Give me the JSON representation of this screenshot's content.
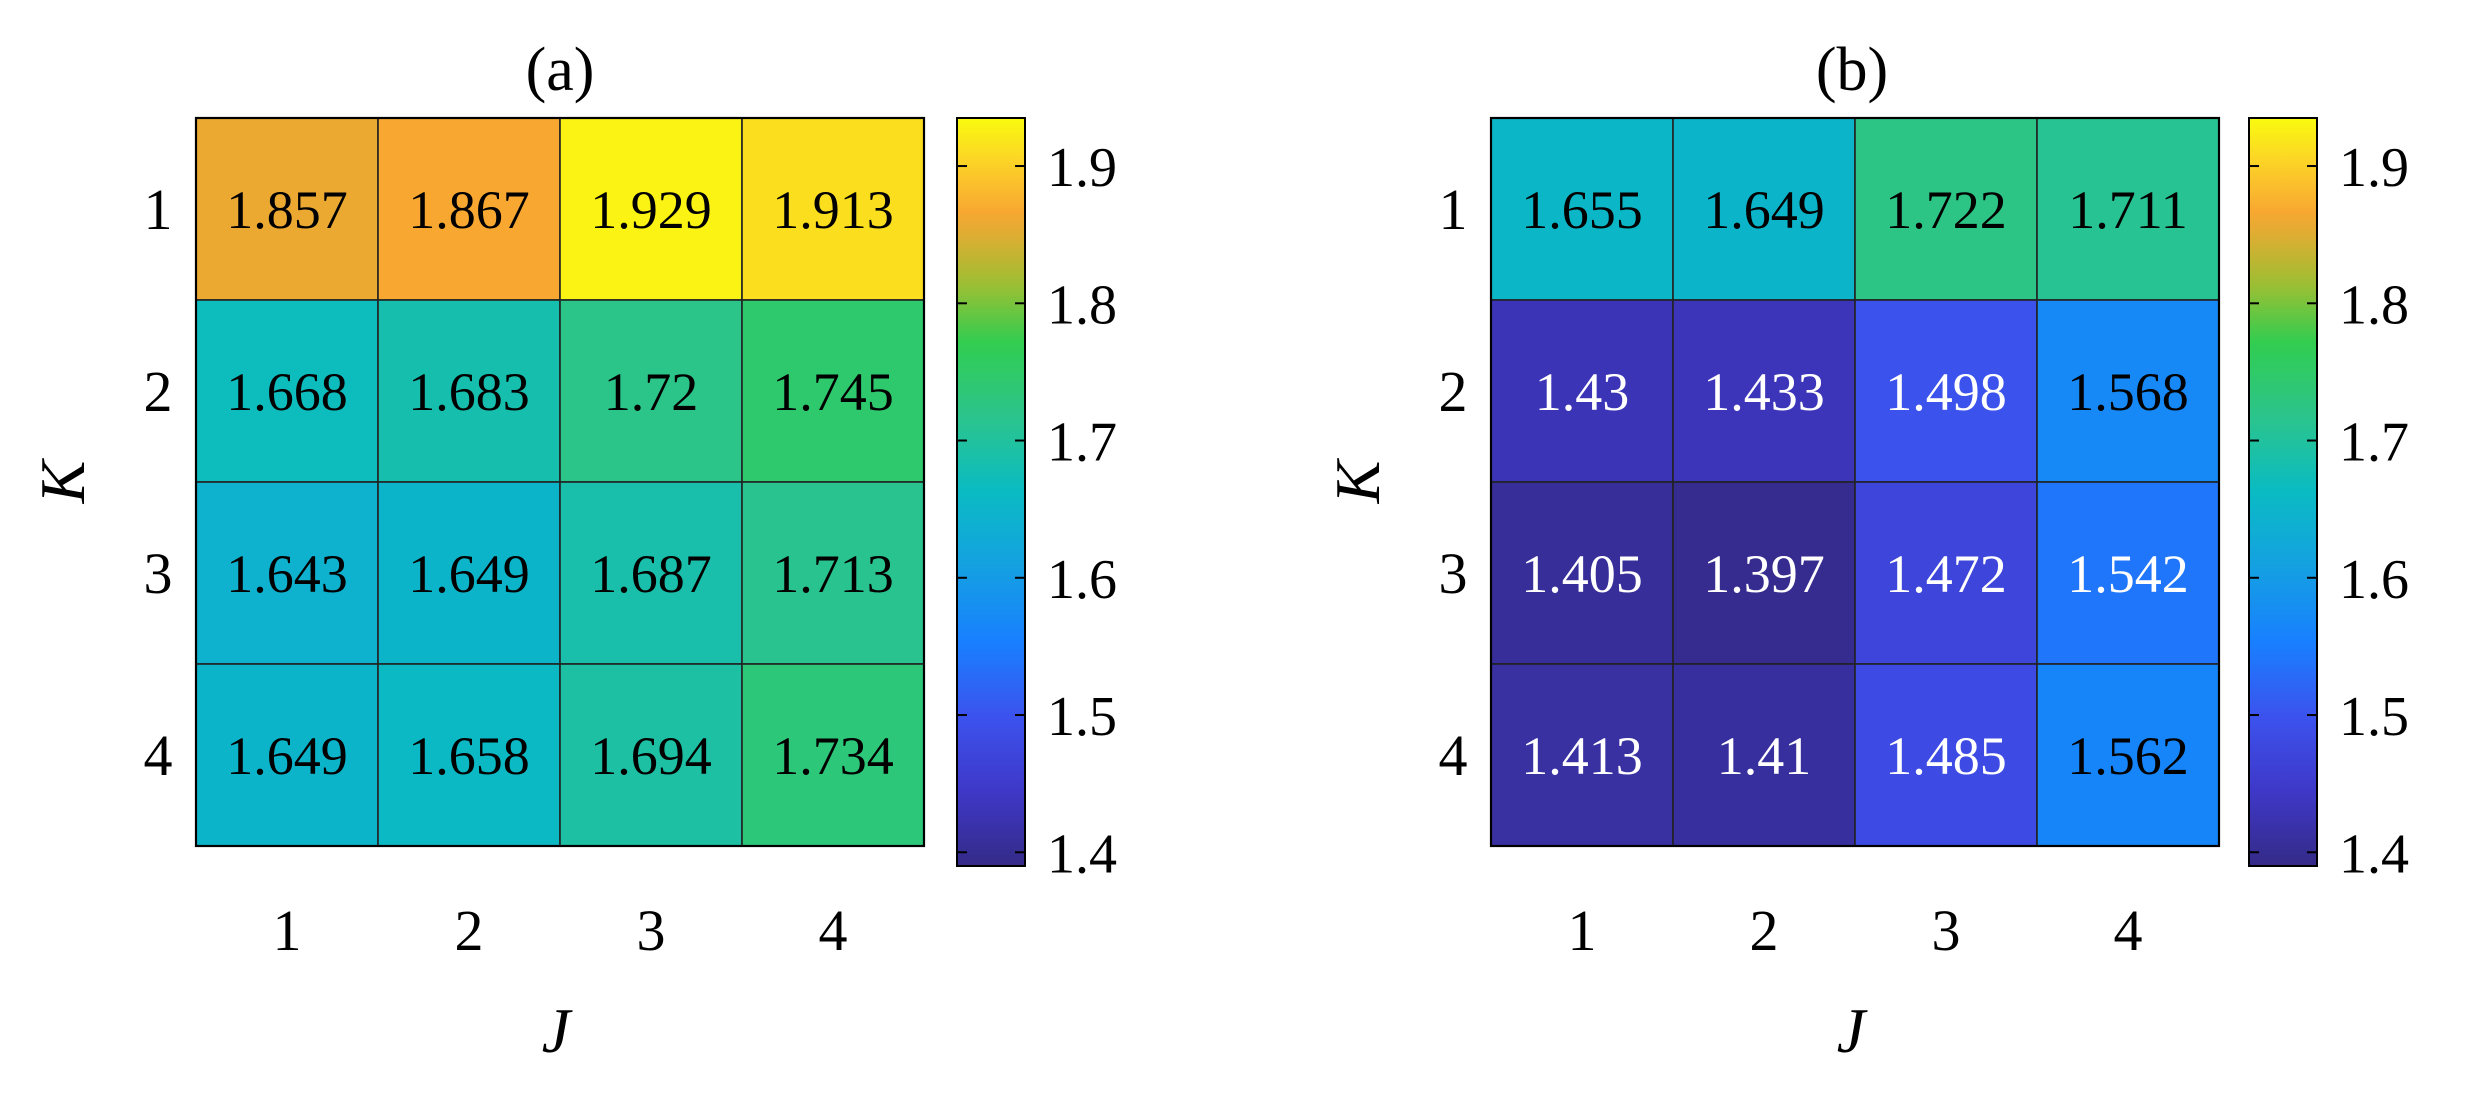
{
  "chart_data": [
    {
      "type": "heatmap",
      "title": "(a)",
      "xlabel": "J",
      "ylabel": "K",
      "x_categories": [
        "1",
        "2",
        "3",
        "4"
      ],
      "y_categories": [
        "1",
        "2",
        "3",
        "4"
      ],
      "values": [
        [
          1.857,
          1.867,
          1.929,
          1.913
        ],
        [
          1.668,
          1.683,
          1.72,
          1.745
        ],
        [
          1.643,
          1.649,
          1.687,
          1.713
        ],
        [
          1.649,
          1.658,
          1.694,
          1.734
        ]
      ],
      "labels": [
        [
          "1.857",
          "1.867",
          "1.929",
          "1.913"
        ],
        [
          "1.668",
          "1.683",
          "1.72",
          "1.745"
        ],
        [
          "1.643",
          "1.649",
          "1.687",
          "1.713"
        ],
        [
          "1.649",
          "1.658",
          "1.694",
          "1.734"
        ]
      ],
      "colorbar": {
        "range": [
          1.39,
          1.935
        ],
        "ticks": [
          1.4,
          1.5,
          1.6,
          1.7,
          1.8,
          1.9
        ],
        "tick_labels": [
          "1.4",
          "1.5",
          "1.6",
          "1.7",
          "1.8",
          "1.9"
        ],
        "colormap": "parula"
      }
    },
    {
      "type": "heatmap",
      "title": "(b)",
      "xlabel": "J",
      "ylabel": "K",
      "x_categories": [
        "1",
        "2",
        "3",
        "4"
      ],
      "y_categories": [
        "1",
        "2",
        "3",
        "4"
      ],
      "values": [
        [
          1.655,
          1.649,
          1.722,
          1.711
        ],
        [
          1.43,
          1.433,
          1.498,
          1.568
        ],
        [
          1.405,
          1.397,
          1.472,
          1.542
        ],
        [
          1.413,
          1.41,
          1.485,
          1.562
        ]
      ],
      "labels": [
        [
          "1.655",
          "1.649",
          "1.722",
          "1.711"
        ],
        [
          "1.43",
          "1.433",
          "1.498",
          "1.568"
        ],
        [
          "1.405",
          "1.397",
          "1.472",
          "1.542"
        ],
        [
          "1.413",
          "1.41",
          "1.485",
          "1.562"
        ]
      ],
      "colorbar": {
        "range": [
          1.39,
          1.935
        ],
        "ticks": [
          1.4,
          1.5,
          1.6,
          1.7,
          1.8,
          1.9
        ],
        "tick_labels": [
          "1.4",
          "1.5",
          "1.6",
          "1.7",
          "1.8",
          "1.9"
        ],
        "colormap": "parula"
      }
    }
  ]
}
